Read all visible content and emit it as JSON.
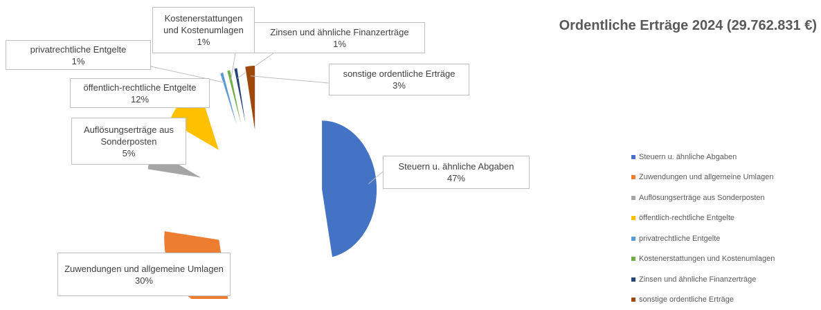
{
  "chart_data": {
    "type": "pie",
    "title": "Ordentliche Erträge 2024 (29.762.831 €)",
    "categories": [
      "Steuern u. ähnliche Abgaben",
      "Zuwendungen und allgemeine Umlagen",
      "Auflösungserträge aus Sonderposten",
      "öffentlich-rechtliche Entgelte",
      "privatrechtliche Entgelte",
      "Kostenerstattungen und Kostenumlagen",
      "Zinsen und ähnliche Finanzerträge",
      "sonstige ordentliche Erträge"
    ],
    "values": [
      47,
      30,
      5,
      12,
      1,
      1,
      1,
      3
    ],
    "value_labels": [
      "47%",
      "30%",
      "5%",
      "12%",
      "1%",
      "1%",
      "1%",
      "3%"
    ],
    "colors": [
      "#4472c4",
      "#ed7d31",
      "#a5a5a5",
      "#ffc000",
      "#5b9bd5",
      "#70ad47",
      "#264478",
      "#9e480e"
    ],
    "legend": "right"
  }
}
